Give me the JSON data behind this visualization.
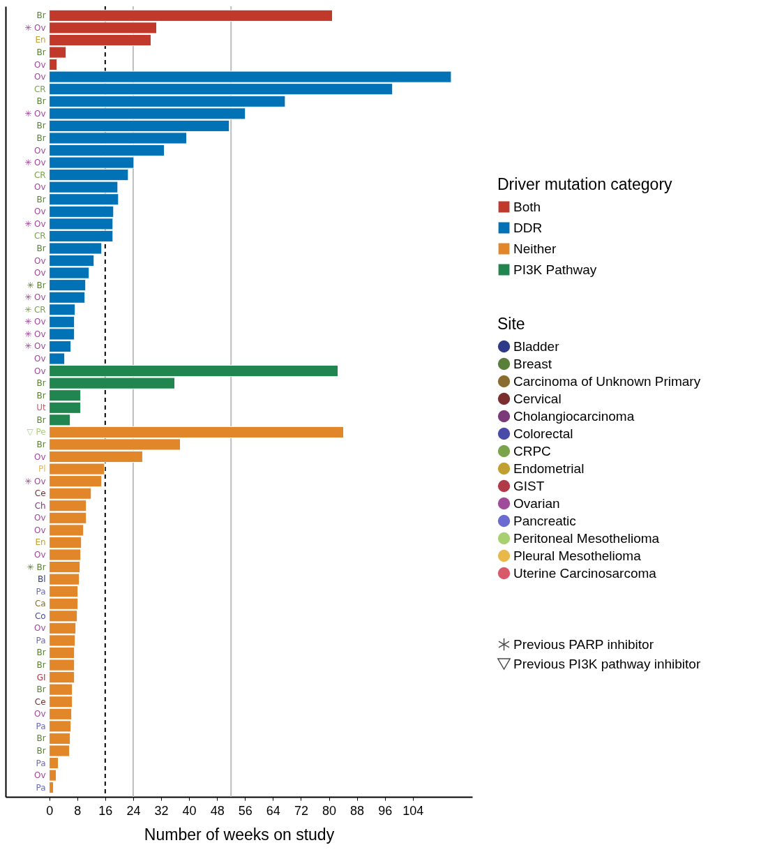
{
  "chart_data": {
    "type": "bar",
    "orientation": "horizontal",
    "xlabel": "Number of weeks on study",
    "legend_title": "Driver mutation category",
    "legend": "right",
    "grid": false,
    "annotations": [
      "Site"
    ],
    "categories": [
      "Br",
      "✳ Ov",
      "En",
      "Br",
      "Ov",
      "Ov",
      "CR",
      "Br",
      "✳ Ov",
      "Br",
      "Br",
      "Ov",
      "✳ Ov",
      "CR",
      "Ov",
      "Br",
      "Ov",
      "✳ Ov",
      "CR",
      "Br",
      "Ov",
      "Ov",
      "✳ Br",
      "✳ Ov",
      "✳ CR",
      "✳ Ov",
      "✳ Ov",
      "✳ Ov",
      "Ov",
      "Ov",
      "Br",
      "Br",
      "Ut",
      "Br",
      "▽ Pe",
      "Br",
      "Ov",
      "Pl",
      "✳ Ov",
      "Ce",
      "Ch",
      "Ov",
      "Ov",
      "En",
      "Ov",
      "✳ Br",
      "Bl",
      "Pa",
      "Ca",
      "Co",
      "Ov",
      "Pa",
      "Br",
      "Br",
      "GI",
      "Br",
      "Ce",
      "Ov",
      "Pa",
      "Br",
      "Br",
      "Pa",
      "Ov",
      "Pa"
    ],
    "xlim": [
      -12.5,
      121
    ],
    "xticks": [
      0,
      8,
      16,
      24,
      32,
      40,
      48,
      56,
      64,
      72,
      80,
      88,
      96,
      104
    ],
    "ref_lines": [
      {
        "axis": "x",
        "value": 16,
        "color": "#000000",
        "line_style": "dashed"
      },
      {
        "axis": "x",
        "value": 24,
        "color": "#bdbdbd",
        "line_style": "solid"
      },
      {
        "axis": "x",
        "value": 52,
        "color": "#bdbdbd",
        "line_style": "solid"
      }
    ],
    "series": [
      {
        "name": "Both",
        "color": "#c0392b",
        "values": [
          81.0,
          30.7,
          29.1,
          4.8,
          2.2,
          null,
          null,
          null,
          null,
          null,
          null,
          null,
          null,
          null,
          null,
          null,
          null,
          null,
          null,
          null,
          null,
          null,
          null,
          null,
          null,
          null,
          null,
          null,
          null,
          null,
          null,
          null,
          null,
          null,
          null,
          null,
          null,
          null,
          null,
          null,
          null,
          null,
          null,
          null,
          null,
          null,
          null,
          null,
          null,
          null,
          null,
          null,
          null,
          null,
          null,
          null,
          null,
          null,
          null,
          null,
          null,
          null,
          null,
          null
        ]
      },
      {
        "name": "DDR",
        "color": "#0072b5",
        "values": [
          null,
          null,
          null,
          null,
          null,
          115.0,
          98.2,
          67.5,
          56.1,
          51.5,
          39.3,
          32.9,
          24.2,
          22.6,
          19.6,
          19.8,
          18.4,
          18.2,
          18.2,
          15.0,
          12.8,
          11.4,
          10.4,
          10.2,
          7.4,
          7.2,
          7.2,
          6.2,
          4.4,
          null,
          null,
          null,
          null,
          null,
          null,
          null,
          null,
          null,
          null,
          null,
          null,
          null,
          null,
          null,
          null,
          null,
          null,
          null,
          null,
          null,
          null,
          null,
          null,
          null,
          null,
          null,
          null,
          null,
          null,
          null,
          null,
          null,
          null,
          null
        ]
      },
      {
        "name": "Neither",
        "color": "#e1872a",
        "values": [
          null,
          null,
          null,
          null,
          null,
          null,
          null,
          null,
          null,
          null,
          null,
          null,
          null,
          null,
          null,
          null,
          null,
          null,
          null,
          null,
          null,
          null,
          null,
          null,
          null,
          null,
          null,
          null,
          null,
          null,
          null,
          null,
          null,
          null,
          84.2,
          37.5,
          26.7,
          15.8,
          15.0,
          12.0,
          10.6,
          10.6,
          9.8,
          9.2,
          9.0,
          8.8,
          8.6,
          8.2,
          8.2,
          8.0,
          7.6,
          7.4,
          7.2,
          7.2,
          7.2,
          6.6,
          6.6,
          6.4,
          6.2,
          6.0,
          5.8,
          2.6,
          2.0,
          1.2
        ]
      },
      {
        "name": "PI3K Pathway",
        "color": "#20854e",
        "values": [
          null,
          null,
          null,
          null,
          null,
          null,
          null,
          null,
          null,
          null,
          null,
          null,
          null,
          null,
          null,
          null,
          null,
          null,
          null,
          null,
          null,
          null,
          null,
          null,
          null,
          null,
          null,
          null,
          null,
          82.6,
          35.9,
          9.0,
          9.0,
          6.0,
          null,
          null,
          null,
          null,
          null,
          null,
          null,
          null,
          null,
          null,
          null,
          null,
          null,
          null,
          null,
          null,
          null,
          null,
          null,
          null,
          null,
          null,
          null,
          null,
          null,
          null,
          null,
          null,
          null,
          null
        ]
      },
      {
        "name": "Bladder",
        "type": "scatter",
        "marker": "circle",
        "color": "#2e3a87",
        "values": [
          null,
          null,
          null,
          null,
          null,
          null,
          null,
          null,
          null,
          null,
          null,
          null,
          null,
          null,
          null,
          null,
          null,
          null,
          null,
          null,
          null,
          null,
          null,
          null,
          null,
          null,
          null,
          null,
          null,
          null,
          null,
          null,
          null,
          null,
          null,
          null,
          null,
          null,
          null,
          null,
          null,
          null,
          null,
          null,
          null,
          null,
          null,
          null,
          null,
          null,
          null,
          null,
          null,
          null,
          null,
          null,
          null,
          null,
          null,
          null,
          null,
          null,
          null,
          null
        ]
      },
      {
        "name": "Breast",
        "type": "scatter",
        "marker": "circle",
        "color": "#5a7f3a",
        "values": [
          null,
          null,
          null,
          null,
          null,
          null,
          null,
          null,
          null,
          null,
          null,
          null,
          null,
          null,
          null,
          null,
          null,
          null,
          null,
          null,
          null,
          null,
          null,
          null,
          null,
          null,
          null,
          null,
          null,
          null,
          null,
          null,
          null,
          null,
          null,
          null,
          null,
          null,
          null,
          null,
          null,
          null,
          null,
          null,
          null,
          null,
          null,
          null,
          null,
          null,
          null,
          null,
          null,
          null,
          null,
          null,
          null,
          null,
          null,
          null,
          null,
          null,
          null,
          null
        ]
      },
      {
        "name": "Carcinoma of Unknown Primary",
        "type": "scatter",
        "marker": "circle",
        "color": "#8a6d2e",
        "values": [
          null,
          null,
          null,
          null,
          null,
          null,
          null,
          null,
          null,
          null,
          null,
          null,
          null,
          null,
          null,
          null,
          null,
          null,
          null,
          null,
          null,
          null,
          null,
          null,
          null,
          null,
          null,
          null,
          null,
          null,
          null,
          null,
          null,
          null,
          null,
          null,
          null,
          null,
          null,
          null,
          null,
          null,
          null,
          null,
          null,
          null,
          null,
          null,
          null,
          null,
          null,
          null,
          null,
          null,
          null,
          null,
          null,
          null,
          null,
          null,
          null,
          null,
          null,
          null
        ]
      },
      {
        "name": "Cervical",
        "type": "scatter",
        "marker": "circle",
        "color": "#7a2e2e",
        "values": [
          null,
          null,
          null,
          null,
          null,
          null,
          null,
          null,
          null,
          null,
          null,
          null,
          null,
          null,
          null,
          null,
          null,
          null,
          null,
          null,
          null,
          null,
          null,
          null,
          null,
          null,
          null,
          null,
          null,
          null,
          null,
          null,
          null,
          null,
          null,
          null,
          null,
          null,
          null,
          null,
          null,
          null,
          null,
          null,
          null,
          null,
          null,
          null,
          null,
          null,
          null,
          null,
          null,
          null,
          null,
          null,
          null,
          null,
          null,
          null,
          null,
          null,
          null,
          null
        ]
      },
      {
        "name": "Cholangiocarcinoma",
        "type": "scatter",
        "marker": "circle",
        "color": "#7a3a7a",
        "values": [
          null,
          null,
          null,
          null,
          null,
          null,
          null,
          null,
          null,
          null,
          null,
          null,
          null,
          null,
          null,
          null,
          null,
          null,
          null,
          null,
          null,
          null,
          null,
          null,
          null,
          null,
          null,
          null,
          null,
          null,
          null,
          null,
          null,
          null,
          null,
          null,
          null,
          null,
          null,
          null,
          null,
          null,
          null,
          null,
          null,
          null,
          null,
          null,
          null,
          null,
          null,
          null,
          null,
          null,
          null,
          null,
          null,
          null,
          null,
          null,
          null,
          null,
          null,
          null
        ]
      },
      {
        "name": "Colorectal",
        "type": "scatter",
        "marker": "circle",
        "color": "#4a4aa8",
        "values": [
          null,
          null,
          null,
          null,
          null,
          null,
          null,
          null,
          null,
          null,
          null,
          null,
          null,
          null,
          null,
          null,
          null,
          null,
          null,
          null,
          null,
          null,
          null,
          null,
          null,
          null,
          null,
          null,
          null,
          null,
          null,
          null,
          null,
          null,
          null,
          null,
          null,
          null,
          null,
          null,
          null,
          null,
          null,
          null,
          null,
          null,
          null,
          null,
          null,
          null,
          null,
          null,
          null,
          null,
          null,
          null,
          null,
          null,
          null,
          null,
          null,
          null,
          null,
          null
        ]
      },
      {
        "name": "CRPC",
        "type": "scatter",
        "marker": "circle",
        "color": "#7aa34a",
        "values": [
          null,
          null,
          null,
          null,
          null,
          null,
          null,
          null,
          null,
          null,
          null,
          null,
          null,
          null,
          null,
          null,
          null,
          null,
          null,
          null,
          null,
          null,
          null,
          null,
          null,
          null,
          null,
          null,
          null,
          null,
          null,
          null,
          null,
          null,
          null,
          null,
          null,
          null,
          null,
          null,
          null,
          null,
          null,
          null,
          null,
          null,
          null,
          null,
          null,
          null,
          null,
          null,
          null,
          null,
          null,
          null,
          null,
          null,
          null,
          null,
          null,
          null,
          null,
          null
        ]
      },
      {
        "name": "Endometrial",
        "type": "scatter",
        "marker": "circle",
        "color": "#c0a030",
        "values": [
          null,
          null,
          null,
          null,
          null,
          null,
          null,
          null,
          null,
          null,
          null,
          null,
          null,
          null,
          null,
          null,
          null,
          null,
          null,
          null,
          null,
          null,
          null,
          null,
          null,
          null,
          null,
          null,
          null,
          null,
          null,
          null,
          null,
          null,
          null,
          null,
          null,
          null,
          null,
          null,
          null,
          null,
          null,
          null,
          null,
          null,
          null,
          null,
          null,
          null,
          null,
          null,
          null,
          null,
          null,
          null,
          null,
          null,
          null,
          null,
          null,
          null,
          null,
          null
        ]
      },
      {
        "name": "GIST",
        "type": "scatter",
        "marker": "circle",
        "color": "#b03a48",
        "values": [
          null,
          null,
          null,
          null,
          null,
          null,
          null,
          null,
          null,
          null,
          null,
          null,
          null,
          null,
          null,
          null,
          null,
          null,
          null,
          null,
          null,
          null,
          null,
          null,
          null,
          null,
          null,
          null,
          null,
          null,
          null,
          null,
          null,
          null,
          null,
          null,
          null,
          null,
          null,
          null,
          null,
          null,
          null,
          null,
          null,
          null,
          null,
          null,
          null,
          null,
          null,
          null,
          null,
          null,
          null,
          null,
          null,
          null,
          null,
          null,
          null,
          null,
          null,
          null
        ]
      },
      {
        "name": "Ovarian",
        "type": "scatter",
        "marker": "circle",
        "color": "#a04a9a",
        "values": [
          null,
          null,
          null,
          null,
          null,
          null,
          null,
          null,
          null,
          null,
          null,
          null,
          null,
          null,
          null,
          null,
          null,
          null,
          null,
          null,
          null,
          null,
          null,
          null,
          null,
          null,
          null,
          null,
          null,
          null,
          null,
          null,
          null,
          null,
          null,
          null,
          null,
          null,
          null,
          null,
          null,
          null,
          null,
          null,
          null,
          null,
          null,
          null,
          null,
          null,
          null,
          null,
          null,
          null,
          null,
          null,
          null,
          null,
          null,
          null,
          null,
          null,
          null,
          null
        ]
      },
      {
        "name": "Pancreatic",
        "type": "scatter",
        "marker": "circle",
        "color": "#6a6ad0",
        "values": [
          null,
          null,
          null,
          null,
          null,
          null,
          null,
          null,
          null,
          null,
          null,
          null,
          null,
          null,
          null,
          null,
          null,
          null,
          null,
          null,
          null,
          null,
          null,
          null,
          null,
          null,
          null,
          null,
          null,
          null,
          null,
          null,
          null,
          null,
          null,
          null,
          null,
          null,
          null,
          null,
          null,
          null,
          null,
          null,
          null,
          null,
          null,
          null,
          null,
          null,
          null,
          null,
          null,
          null,
          null,
          null,
          null,
          null,
          null,
          null,
          null,
          null,
          null,
          null
        ]
      },
      {
        "name": "Peritoneal Mesothelioma",
        "type": "scatter",
        "marker": "circle",
        "color": "#a8d070",
        "values": [
          null,
          null,
          null,
          null,
          null,
          null,
          null,
          null,
          null,
          null,
          null,
          null,
          null,
          null,
          null,
          null,
          null,
          null,
          null,
          null,
          null,
          null,
          null,
          null,
          null,
          null,
          null,
          null,
          null,
          null,
          null,
          null,
          null,
          null,
          null,
          null,
          null,
          null,
          null,
          null,
          null,
          null,
          null,
          null,
          null,
          null,
          null,
          null,
          null,
          null,
          null,
          null,
          null,
          null,
          null,
          null,
          null,
          null,
          null,
          null,
          null,
          null,
          null,
          null
        ]
      },
      {
        "name": "Pleural Mesothelioma",
        "type": "scatter",
        "marker": "circle",
        "color": "#e8b84a",
        "values": [
          null,
          null,
          null,
          null,
          null,
          null,
          null,
          null,
          null,
          null,
          null,
          null,
          null,
          null,
          null,
          null,
          null,
          null,
          null,
          null,
          null,
          null,
          null,
          null,
          null,
          null,
          null,
          null,
          null,
          null,
          null,
          null,
          null,
          null,
          null,
          null,
          null,
          null,
          null,
          null,
          null,
          null,
          null,
          null,
          null,
          null,
          null,
          null,
          null,
          null,
          null,
          null,
          null,
          null,
          null,
          null,
          null,
          null,
          null,
          null,
          null,
          null,
          null,
          null
        ]
      },
      {
        "name": "Uterine Carcinosarcoma",
        "type": "scatter",
        "marker": "circle",
        "color": "#d85a6a",
        "values": [
          null,
          null,
          null,
          null,
          null,
          null,
          null,
          null,
          null,
          null,
          null,
          null,
          null,
          null,
          null,
          null,
          null,
          null,
          null,
          null,
          null,
          null,
          null,
          null,
          null,
          null,
          null,
          null,
          null,
          null,
          null,
          null,
          null,
          null,
          null,
          null,
          null,
          null,
          null,
          null,
          null,
          null,
          null,
          null,
          null,
          null,
          null,
          null,
          null,
          null,
          null,
          null,
          null,
          null,
          null,
          null,
          null,
          null,
          null,
          null,
          null,
          null,
          null,
          null
        ]
      },
      {
        "name": "Previous PARP inhibitor",
        "type": "scatter",
        "marker": "star",
        "color": "#000000",
        "values": [
          null,
          null,
          null,
          null,
          null,
          null,
          null,
          null,
          null,
          null,
          null,
          null,
          null,
          null,
          null,
          null,
          null,
          null,
          null,
          null,
          null,
          null,
          null,
          null,
          null,
          null,
          null,
          null,
          null,
          null,
          null,
          null,
          null,
          null,
          null,
          null,
          null,
          null,
          null,
          null,
          null,
          null,
          null,
          null,
          null,
          null,
          null,
          null,
          null,
          null,
          null,
          null,
          null,
          null,
          null,
          null,
          null,
          null,
          null,
          null,
          null,
          null,
          null,
          null
        ]
      },
      {
        "name": "Previous PI3K pathway inhibitor",
        "type": "scatter",
        "marker": "triangle",
        "color": "#000000",
        "values": [
          null,
          null,
          null,
          null,
          null,
          null,
          null,
          null,
          null,
          null,
          null,
          null,
          null,
          null,
          null,
          null,
          null,
          null,
          null,
          null,
          null,
          null,
          null,
          null,
          null,
          null,
          null,
          null,
          null,
          null,
          null,
          null,
          null,
          null,
          null,
          null,
          null,
          null,
          null,
          null,
          null,
          null,
          null,
          null,
          null,
          null,
          null,
          null,
          null,
          null,
          null,
          null,
          null,
          null,
          null,
          null,
          null,
          null,
          null,
          null,
          null,
          null,
          null,
          null
        ]
      }
    ]
  }
}
